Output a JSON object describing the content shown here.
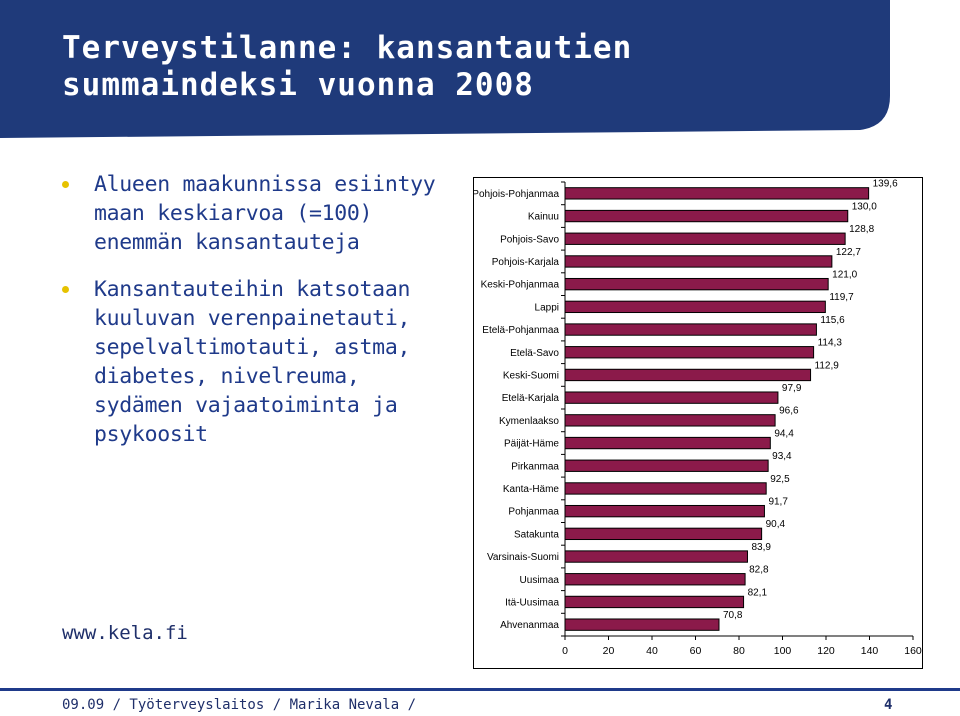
{
  "slide": {
    "title": "Terveystilanne: kansantautien summaindeksi vuonna 2008",
    "bullets": [
      "Alueen maakunnissa esiintyy maan keskiarvoa (=100) enemmän kansantauteja",
      "Kansantauteihin katsotaan kuuluvan verenpainetauti, sepelvaltimotauti, astma, diabetes, nivelreuma, sydämen vajaatoiminta ja psykoosit"
    ],
    "website": "www.kela.fi",
    "footer": "09.09 / Työterveyslaitos / Marika Nevala /",
    "page_number": "4"
  },
  "colors": {
    "header_band": "#1f3a7a",
    "text": "#1f3a8a",
    "bullet": "#e6c200",
    "bar_fill": "#8b1a4a",
    "bar_stroke": "#000000"
  },
  "chart_data": {
    "type": "bar",
    "orientation": "horizontal",
    "categories": [
      "Pohjois-Pohjanmaa",
      "Kainuu",
      "Pohjois-Savo",
      "Pohjois-Karjala",
      "Keski-Pohjanmaa",
      "Lappi",
      "Etelä-Pohjanmaa",
      "Etelä-Savo",
      "Keski-Suomi",
      "Etelä-Karjala",
      "Kymenlaakso",
      "Päijät-Häme",
      "Pirkanmaa",
      "Kanta-Häme",
      "Pohjanmaa",
      "Satakunta",
      "Varsinais-Suomi",
      "Uusimaa",
      "Itä-Uusimaa",
      "Ahvenanmaa"
    ],
    "values": [
      139.6,
      130.0,
      128.8,
      122.7,
      121.0,
      119.7,
      115.6,
      114.3,
      112.9,
      97.9,
      96.6,
      94.4,
      93.4,
      92.5,
      91.7,
      90.4,
      83.9,
      82.8,
      82.1,
      70.8
    ],
    "value_labels": [
      "139,6",
      "130,0",
      "128,8",
      "122,7",
      "121,0",
      "119,7",
      "115,6",
      "114,3",
      "112,9",
      "97,9",
      "96,6",
      "94,4",
      "93,4",
      "92,5",
      "91,7",
      "90,4",
      "83,9",
      "82,8",
      "82,1",
      "70,8"
    ],
    "xlim": [
      0,
      160
    ],
    "xticks": [
      0,
      20,
      40,
      60,
      80,
      100,
      120,
      140,
      160
    ],
    "title": "",
    "xlabel": "",
    "ylabel": "",
    "grid": false,
    "legend": "none"
  }
}
